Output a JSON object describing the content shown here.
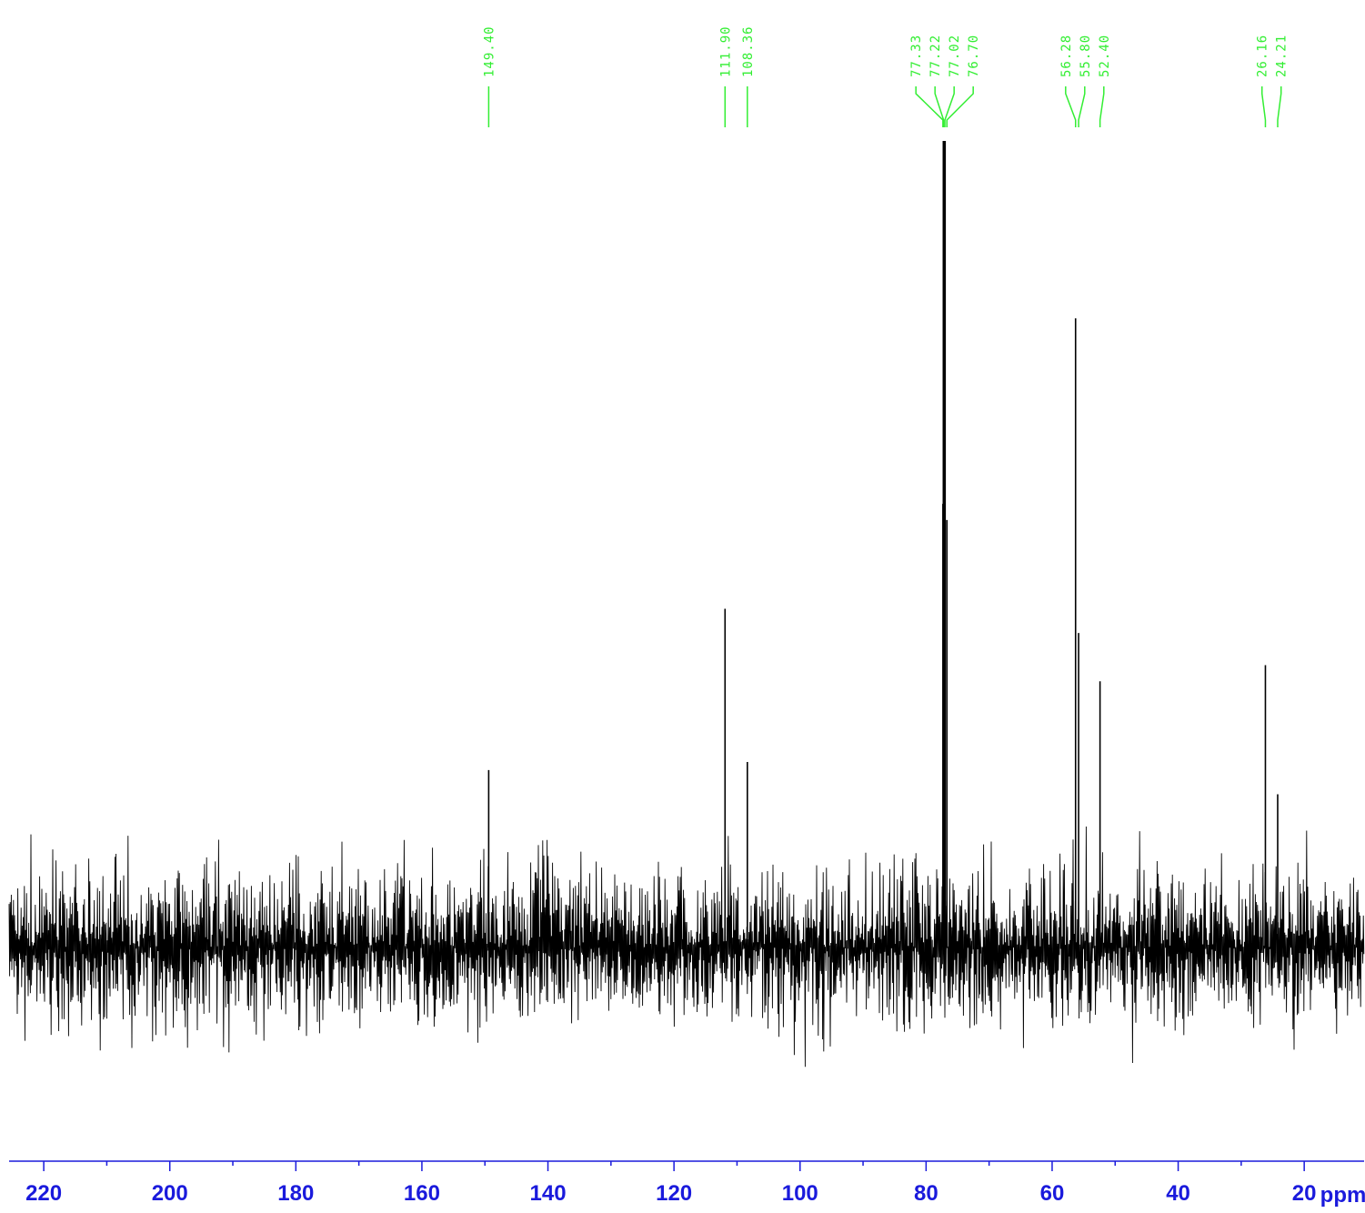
{
  "chart_data": {
    "type": "line",
    "title": "",
    "xlabel": "ppm",
    "ylabel": "",
    "x_reversed": true,
    "xlim": [
      225.5,
      10.5
    ],
    "x_ticks_major": [
      220,
      200,
      180,
      160,
      140,
      120,
      100,
      80,
      60,
      40,
      20
    ],
    "x_tick_labels": [
      "220",
      "200",
      "180",
      "160",
      "140",
      "120",
      "100",
      "80",
      "60",
      "40",
      "20"
    ],
    "x_ticks_minor": [
      210,
      190,
      170,
      150,
      130,
      110,
      90,
      70,
      50,
      30,
      10
    ],
    "grid": false,
    "legend": "none",
    "baseline_noise": true,
    "series": [
      {
        "peaks": [
          {
            "ppm": 149.4,
            "intensity": 0.22
          },
          {
            "ppm": 111.9,
            "intensity": 0.42
          },
          {
            "ppm": 108.36,
            "intensity": 0.23
          },
          {
            "ppm": 77.33,
            "intensity": 0.55
          },
          {
            "ppm": 77.22,
            "intensity": 1.0
          },
          {
            "ppm": 77.02,
            "intensity": 1.0
          },
          {
            "ppm": 76.7,
            "intensity": 0.53
          },
          {
            "ppm": 56.28,
            "intensity": 0.78
          },
          {
            "ppm": 55.8,
            "intensity": 0.39
          },
          {
            "ppm": 52.4,
            "intensity": 0.33
          },
          {
            "ppm": 26.16,
            "intensity": 0.35
          },
          {
            "ppm": 24.21,
            "intensity": 0.19
          }
        ]
      }
    ],
    "peak_labels": [
      {
        "group": 1,
        "labels": [
          "149.40"
        ]
      },
      {
        "group": 2,
        "labels": [
          "111.90",
          "108.36"
        ]
      },
      {
        "group": 3,
        "labels": [
          "77.33",
          "77.22",
          "77.02",
          "76.70"
        ]
      },
      {
        "group": 4,
        "labels": [
          "56.28",
          "55.80",
          "52.40"
        ]
      },
      {
        "group": 5,
        "labels": [
          "26.16",
          "24.21"
        ]
      }
    ]
  },
  "colors": {
    "spectrum": "#000000",
    "peak_labels": "#33ee33",
    "axis": "#1a1adc"
  }
}
